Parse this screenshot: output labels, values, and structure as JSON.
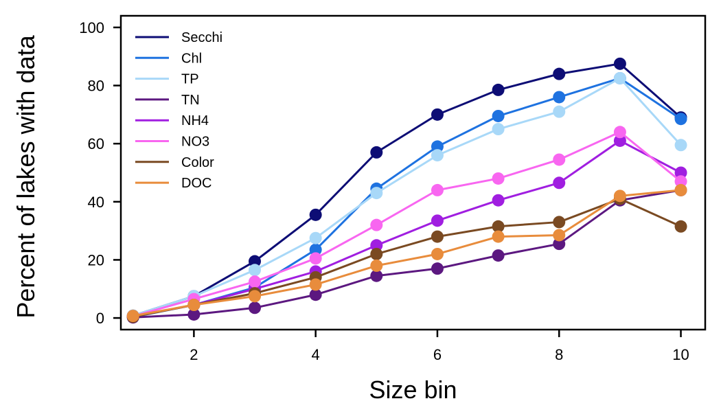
{
  "chart_data": {
    "type": "line",
    "xlabel": "Size bin",
    "ylabel": "Percent of lakes with data",
    "xlim": [
      0.8,
      10.4
    ],
    "ylim": [
      -4,
      104
    ],
    "xticks": [
      2,
      4,
      6,
      8,
      10
    ],
    "yticks": [
      0,
      20,
      40,
      60,
      80,
      100
    ],
    "x": [
      1,
      2,
      3,
      4,
      5,
      6,
      7,
      8,
      9,
      10
    ],
    "legend_position": "top-left",
    "grid": false,
    "series": [
      {
        "name": "Secchi",
        "color": "#0d0d75",
        "values": [
          0.8,
          7.5,
          19.5,
          35.5,
          57,
          70,
          78.5,
          84,
          87.5,
          69
        ]
      },
      {
        "name": "Chl",
        "color": "#1e72e0",
        "values": [
          0.3,
          4.5,
          10.5,
          23.5,
          44.5,
          59,
          69.5,
          76,
          82.5,
          68.5
        ]
      },
      {
        "name": "TP",
        "color": "#a8d8f8",
        "values": [
          0.8,
          7.5,
          16.5,
          27.5,
          43,
          56,
          65,
          71,
          82.5,
          59.5
        ]
      },
      {
        "name": "TN",
        "color": "#5c1880",
        "values": [
          0.2,
          1.2,
          3.5,
          8,
          14.5,
          17,
          21.5,
          25.5,
          40.5,
          44
        ]
      },
      {
        "name": "NH4",
        "color": "#a01ee0",
        "values": [
          0.5,
          4.5,
          10,
          16,
          25,
          33.5,
          40.5,
          46.5,
          61,
          50
        ]
      },
      {
        "name": "NO3",
        "color": "#f866f0",
        "values": [
          0.6,
          6.5,
          12.5,
          20.5,
          32,
          44,
          48,
          54.5,
          64,
          47
        ]
      },
      {
        "name": "Color",
        "color": "#7a4a22",
        "values": [
          0.4,
          4.5,
          8.5,
          14,
          22,
          28,
          31.5,
          33,
          41,
          31.5
        ]
      },
      {
        "name": "DOC",
        "color": "#e88c3c",
        "values": [
          0.7,
          4.5,
          7.5,
          11.5,
          18,
          22,
          28,
          28.5,
          42,
          44
        ]
      }
    ]
  }
}
